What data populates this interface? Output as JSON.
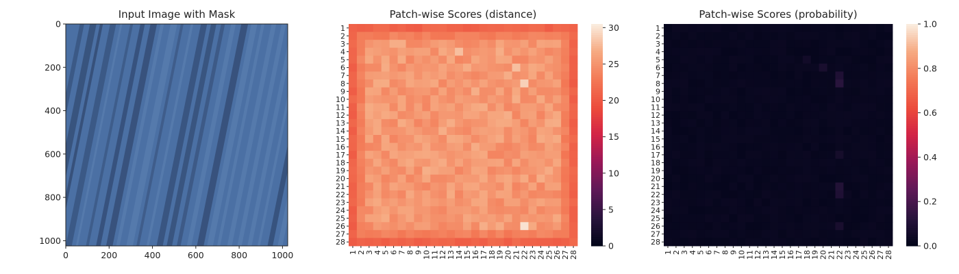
{
  "chart_data": [
    {
      "type": "image",
      "title": "Input Image with Mask",
      "xlim": [
        0,
        1024
      ],
      "ylim": [
        1024,
        0
      ],
      "xticks": [
        0,
        200,
        400,
        600,
        800,
        1000
      ],
      "yticks": [
        0,
        200,
        400,
        600,
        800,
        1000
      ],
      "xtick_labels": [
        "0",
        "200",
        "400",
        "600",
        "800",
        "1000"
      ],
      "ytick_labels": [
        "0",
        "200",
        "400",
        "600",
        "800",
        "1000"
      ],
      "texture": {
        "base_color": "#4b70a4",
        "stripe_color": "#30476e",
        "highlight_color": "#6a8cbd",
        "stripe_count": 22,
        "stripe_slant": 0.2
      }
    },
    {
      "type": "heatmap",
      "title": "Patch-wise Scores (distance)",
      "rows": 28,
      "cols": 28,
      "row_labels": [
        "1",
        "2",
        "3",
        "4",
        "5",
        "6",
        "7",
        "8",
        "9",
        "10",
        "11",
        "12",
        "13",
        "14",
        "15",
        "16",
        "17",
        "18",
        "19",
        "20",
        "21",
        "22",
        "23",
        "24",
        "25",
        "26",
        "27",
        "28"
      ],
      "col_labels": [
        "1",
        "2",
        "3",
        "4",
        "5",
        "6",
        "7",
        "8",
        "9",
        "10",
        "11",
        "12",
        "13",
        "14",
        "15",
        "16",
        "17",
        "18",
        "19",
        "20",
        "21",
        "22",
        "23",
        "24",
        "25",
        "26",
        "27",
        "28"
      ],
      "colorbar": {
        "min": 0,
        "max": 30.5,
        "ticks": [
          0,
          5,
          10,
          15,
          20,
          25,
          30
        ],
        "tick_labels": [
          "0",
          "5",
          "10",
          "15",
          "20",
          "25",
          "30"
        ],
        "colormap": "rocket"
      },
      "pattern": {
        "border": 21,
        "second_ring": 23.5,
        "interior": 25.5,
        "hot_spots": [
          {
            "row": 8,
            "col": 22,
            "value": 29
          },
          {
            "row": 26,
            "col": 22,
            "value": 30
          },
          {
            "row": 6,
            "col": 21,
            "value": 28
          },
          {
            "row": 4,
            "col": 14,
            "value": 28
          }
        ]
      }
    },
    {
      "type": "heatmap",
      "title": "Patch-wise Scores (probability)",
      "rows": 28,
      "cols": 28,
      "row_labels": [
        "1",
        "2",
        "3",
        "4",
        "5",
        "6",
        "7",
        "8",
        "9",
        "10",
        "11",
        "12",
        "13",
        "14",
        "15",
        "16",
        "17",
        "18",
        "19",
        "20",
        "21",
        "22",
        "23",
        "24",
        "25",
        "26",
        "27",
        "28"
      ],
      "col_labels": [
        "1",
        "2",
        "3",
        "4",
        "5",
        "6",
        "7",
        "8",
        "9",
        "10",
        "11",
        "12",
        "13",
        "14",
        "15",
        "16",
        "17",
        "18",
        "19",
        "20",
        "21",
        "22",
        "23",
        "24",
        "25",
        "26",
        "27",
        "28"
      ],
      "colorbar": {
        "min": 0,
        "max": 1,
        "ticks": [
          0,
          0.2,
          0.4,
          0.6,
          0.8,
          1.0
        ],
        "tick_labels": [
          "0.0",
          "0.2",
          "0.4",
          "0.6",
          "0.8",
          "1.0"
        ],
        "colormap": "rocket"
      },
      "pattern": {
        "background": 0.01,
        "hot_spots": [
          {
            "row": 8,
            "col": 22,
            "value": 0.12
          },
          {
            "row": 7,
            "col": 22,
            "value": 0.09
          },
          {
            "row": 21,
            "col": 22,
            "value": 0.1
          },
          {
            "row": 22,
            "col": 22,
            "value": 0.09
          },
          {
            "row": 6,
            "col": 20,
            "value": 0.07
          },
          {
            "row": 26,
            "col": 22,
            "value": 0.07
          },
          {
            "row": 17,
            "col": 22,
            "value": 0.06
          },
          {
            "row": 5,
            "col": 18,
            "value": 0.05
          }
        ]
      }
    }
  ]
}
